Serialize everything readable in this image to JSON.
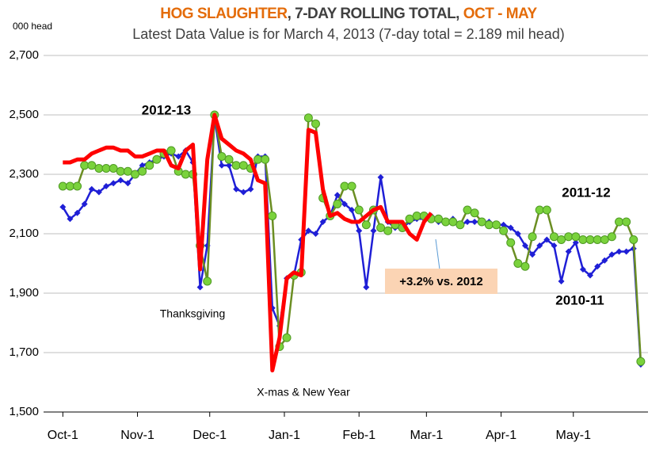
{
  "chart_data": {
    "type": "line",
    "title_parts": [
      {
        "text": "HOG SLAUGHTER",
        "color": "#e46c0a"
      },
      {
        "text": ", 7-DAY ROLLING TOTAL, ",
        "color": "#404040"
      },
      {
        "text": "OCT - MAY",
        "color": "#e46c0a"
      }
    ],
    "subtitle": "Latest Data Value is for March 4, 2013 (7-day total = 2.189 mil head)",
    "y_label": "000 head",
    "annotations": [
      "Thanksgiving",
      "X-mas & New Year",
      "+3.2% vs. 2012"
    ],
    "grid": true,
    "xlim": [
      -8,
      243
    ],
    "xticks": [
      {
        "value": 0,
        "label": "Oct-1"
      },
      {
        "value": 31,
        "label": "Nov-1"
      },
      {
        "value": 61,
        "label": "Dec-1"
      },
      {
        "value": 92,
        "label": "Jan-1"
      },
      {
        "value": 123,
        "label": "Feb-1"
      },
      {
        "value": 151,
        "label": "Mar-1"
      },
      {
        "value": 182,
        "label": "Apr-1"
      },
      {
        "value": 212,
        "label": "May-1"
      }
    ],
    "ylim": [
      1500,
      2700
    ],
    "yticks": [
      {
        "value": 1500,
        "label": "1,500"
      },
      {
        "value": 1700,
        "label": "1,700"
      },
      {
        "value": 1900,
        "label": "1,900"
      },
      {
        "value": 2100,
        "label": "2,100"
      },
      {
        "value": 2300,
        "label": "2,300"
      },
      {
        "value": 2500,
        "label": "2,500"
      },
      {
        "value": 2700,
        "label": "2,700"
      }
    ],
    "x": [
      0,
      3,
      6,
      9,
      12,
      15,
      18,
      21,
      24,
      27,
      30,
      33,
      36,
      39,
      42,
      45,
      48,
      51,
      54,
      57,
      60,
      63,
      66,
      69,
      72,
      75,
      78,
      81,
      84,
      87,
      90,
      93,
      96,
      99,
      102,
      105,
      108,
      111,
      114,
      117,
      120,
      123,
      126,
      129,
      132,
      135,
      138,
      141,
      144,
      147,
      150,
      153,
      156,
      159,
      162,
      165,
      168,
      171,
      174,
      177,
      180,
      183,
      186,
      189,
      192,
      195,
      198,
      201,
      204,
      207,
      210,
      213,
      216,
      219,
      222,
      225,
      228,
      231,
      234,
      237,
      240
    ],
    "series": [
      {
        "name": "2010-11",
        "color": "#1f1fd6",
        "marker": "diamond",
        "values": [
          2190,
          2150,
          2170,
          2200,
          2250,
          2240,
          2260,
          2270,
          2280,
          2270,
          2300,
          2330,
          2340,
          2350,
          2360,
          2370,
          2360,
          2380,
          2340,
          1920,
          2060,
          2490,
          2330,
          2330,
          2250,
          2240,
          2250,
          2360,
          2360,
          1850,
          1790,
          1950,
          1960,
          2080,
          2110,
          2100,
          2140,
          2160,
          2230,
          2200,
          2180,
          2110,
          1920,
          2110,
          2290,
          2140,
          2120,
          2120,
          2140,
          2150,
          2150,
          2160,
          2140,
          2140,
          2150,
          2130,
          2140,
          2140,
          2140,
          2140,
          2130,
          2130,
          2120,
          2100,
          2060,
          2030,
          2060,
          2080,
          2060,
          1940,
          2040,
          2070,
          1980,
          1960,
          1990,
          2010,
          2030,
          2040,
          2040,
          2050,
          1660
        ]
      },
      {
        "name": "2011-12",
        "color": "#1e8c1e",
        "marker": "circle",
        "values": [
          2260,
          2260,
          2260,
          2330,
          2330,
          2320,
          2320,
          2320,
          2310,
          2310,
          2300,
          2310,
          2330,
          2350,
          2370,
          2380,
          2310,
          2300,
          2300,
          2060,
          1940,
          2500,
          2360,
          2350,
          2330,
          2330,
          2320,
          2350,
          2350,
          2160,
          1720,
          1750,
          1960,
          1970,
          2490,
          2470,
          2220,
          2160,
          2200,
          2260,
          2260,
          2180,
          2130,
          2180,
          2120,
          2110,
          2130,
          2120,
          2150,
          2160,
          2160,
          2150,
          2150,
          2140,
          2140,
          2130,
          2180,
          2170,
          2140,
          2130,
          2130,
          2110,
          2070,
          2000,
          1990,
          2090,
          2180,
          2180,
          2090,
          2080,
          2090,
          2090,
          2080,
          2080,
          2080,
          2080,
          2090,
          2140,
          2140,
          2080,
          1670
        ]
      },
      {
        "name": "2012-13",
        "color": "#ff0000",
        "marker": "none",
        "values": [
          2340,
          2340,
          2350,
          2350,
          2370,
          2380,
          2390,
          2390,
          2380,
          2380,
          2360,
          2360,
          2370,
          2380,
          2380,
          2330,
          2320,
          2380,
          2400,
          1980,
          2350,
          2500,
          2420,
          2400,
          2380,
          2370,
          2350,
          2280,
          2270,
          1640,
          1750,
          1950,
          1970,
          1960,
          2450,
          2440,
          2250,
          2160,
          2170,
          2150,
          2140,
          2140,
          2160,
          2180,
          2190,
          2140,
          2140,
          2140,
          2100,
          2080,
          2140,
          2170,
          null,
          null,
          null,
          null,
          null,
          null,
          null,
          null,
          null,
          null,
          null,
          null,
          null,
          null,
          null,
          null,
          null,
          null,
          null,
          null,
          null,
          null,
          null,
          null,
          null,
          null,
          null,
          null,
          null
        ]
      }
    ]
  }
}
